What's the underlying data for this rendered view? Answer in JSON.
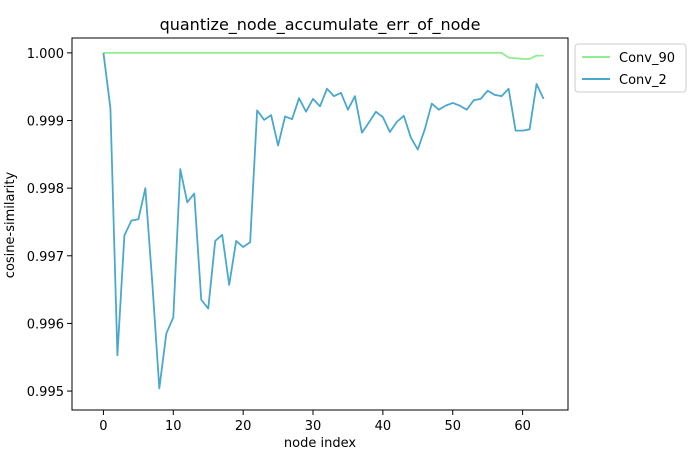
{
  "chart_data": {
    "type": "line",
    "title": "quantize_node_accumulate_err_of_node",
    "xlabel": "node index",
    "ylabel": "cosine-similarity",
    "xlim": [
      -4.5,
      66.5
    ],
    "ylim": [
      0.99472,
      1.00022
    ],
    "x_ticks": [
      0,
      10,
      20,
      30,
      40,
      50,
      60
    ],
    "y_ticks": [
      0.995,
      0.996,
      0.997,
      0.998,
      0.999,
      1.0
    ],
    "y_tick_labels": [
      "0.995",
      "0.996",
      "0.997",
      "0.998",
      "0.999",
      "1.000"
    ],
    "grid": false,
    "legend_position": "outside-top-right",
    "x": [
      0,
      1,
      2,
      3,
      4,
      5,
      6,
      7,
      8,
      9,
      10,
      11,
      12,
      13,
      14,
      15,
      16,
      17,
      18,
      19,
      20,
      21,
      22,
      23,
      24,
      25,
      26,
      27,
      28,
      29,
      30,
      31,
      32,
      33,
      34,
      35,
      36,
      37,
      38,
      39,
      40,
      41,
      42,
      43,
      44,
      45,
      46,
      47,
      48,
      49,
      50,
      51,
      52,
      53,
      54,
      55,
      56,
      57,
      58,
      59,
      60,
      61,
      62,
      63
    ],
    "series": [
      {
        "name": "Conv_90",
        "color": "#90ee90",
        "values": [
          1.0,
          1.0,
          1.0,
          1.0,
          1.0,
          1.0,
          1.0,
          1.0,
          1.0,
          1.0,
          1.0,
          1.0,
          1.0,
          1.0,
          1.0,
          1.0,
          1.0,
          1.0,
          1.0,
          1.0,
          1.0,
          1.0,
          1.0,
          1.0,
          1.0,
          1.0,
          1.0,
          1.0,
          1.0,
          1.0,
          1.0,
          1.0,
          1.0,
          1.0,
          1.0,
          1.0,
          1.0,
          1.0,
          1.0,
          1.0,
          1.0,
          1.0,
          1.0,
          1.0,
          1.0,
          1.0,
          1.0,
          1.0,
          1.0,
          1.0,
          1.0,
          1.0,
          1.0,
          1.0,
          1.0,
          1.0,
          1.0,
          1.0,
          0.99993,
          0.99992,
          0.99991,
          0.99991,
          0.99996,
          0.99996
        ]
      },
      {
        "name": "Conv_2",
        "color": "#4aa8cc",
        "values": [
          1.0,
          0.99918,
          0.99553,
          0.9973,
          0.99752,
          0.99754,
          0.998,
          0.99659,
          0.99504,
          0.99585,
          0.99609,
          0.99828,
          0.99779,
          0.99792,
          0.99635,
          0.99622,
          0.99722,
          0.99731,
          0.99657,
          0.99722,
          0.99713,
          0.9972,
          0.99915,
          0.99901,
          0.99908,
          0.99863,
          0.99906,
          0.99902,
          0.99933,
          0.99913,
          0.99932,
          0.99921,
          0.99947,
          0.99936,
          0.99941,
          0.99916,
          0.99936,
          0.99882,
          0.99897,
          0.99913,
          0.99905,
          0.99883,
          0.99898,
          0.99907,
          0.99875,
          0.99857,
          0.99887,
          0.99925,
          0.99916,
          0.99922,
          0.99926,
          0.99922,
          0.99916,
          0.9993,
          0.99932,
          0.99944,
          0.99938,
          0.99936,
          0.99947,
          0.99885,
          0.99885,
          0.99887,
          0.99954,
          0.99932
        ]
      }
    ]
  }
}
